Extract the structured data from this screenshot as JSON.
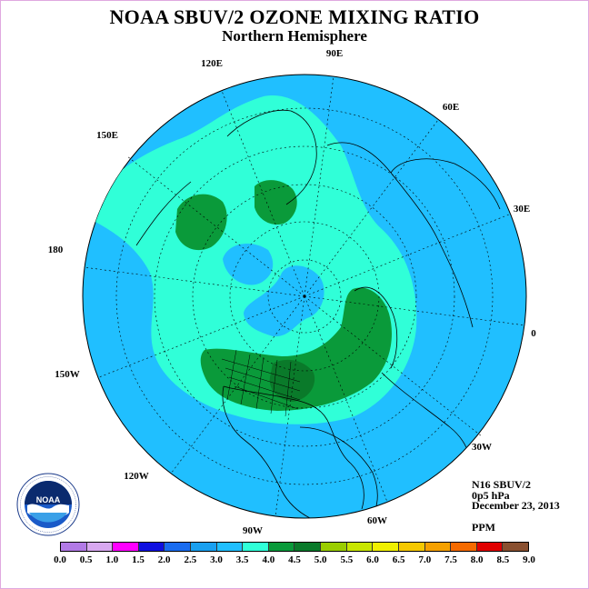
{
  "title": "NOAA SBUV/2 OZONE MIXING RATIO",
  "subtitle": "Northern Hemisphere",
  "longitude_labels": {
    "lon_90e": "90E",
    "lon_60e": "60E",
    "lon_30e": "30E",
    "lon_0": "0",
    "lon_30w": "30W",
    "lon_60w": "60W",
    "lon_90w": "90W",
    "lon_120w": "120W",
    "lon_150w": "150W",
    "lon_180": "180",
    "lon_150e": "150E",
    "lon_120e": "120E"
  },
  "info": {
    "instrument": "N16 SBUV/2",
    "level": "0p5 hPa",
    "date": "December 23, 2013",
    "units": "PPM"
  },
  "logo": {
    "text": "NOAA",
    "ring_text": "NATIONAL OCEANIC AND ATMOSPHERIC ADMINISTRATION · U.S. DEPARTMENT OF COMMERCE"
  },
  "colorbar": {
    "ticks": [
      "0.0",
      "0.5",
      "1.0",
      "1.5",
      "2.0",
      "2.5",
      "3.0",
      "3.5",
      "4.0",
      "4.5",
      "5.0",
      "5.5",
      "6.0",
      "6.5",
      "7.0",
      "7.5",
      "8.0",
      "8.5",
      "9.0"
    ],
    "colors": [
      "#b27ae6",
      "#d8a8f0",
      "#ff00ff",
      "#1010e0",
      "#1a6cf0",
      "#1aa0f0",
      "#20bfff",
      "#30ffd8",
      "#0a9a3a",
      "#0a7a2a",
      "#9acd00",
      "#c8e600",
      "#f0f000",
      "#f5c800",
      "#f5a000",
      "#f56a00",
      "#e00000",
      "#8a5030"
    ]
  },
  "map": {
    "projection": "north polar stereographic",
    "colors": {
      "ocean_band_3_0_3_5": "#20bfff",
      "band_3_5_4_0": "#30ffd8",
      "band_4_0_4_5": "#0a9a3a",
      "band_4_5_5_0": "#0a7a2a",
      "low_band_2_5_3_0": "#1aa0f0"
    }
  }
}
